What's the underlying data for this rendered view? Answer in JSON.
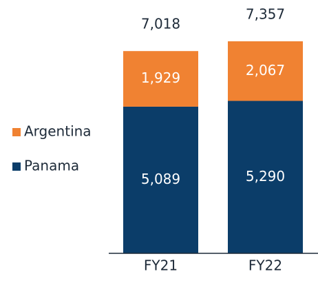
{
  "chart_data": {
    "type": "stacked_bar",
    "categories": [
      "FY21",
      "FY22"
    ],
    "series": [
      {
        "name": "Panama",
        "color": "#0b3d69",
        "values": [
          5089,
          5290
        ],
        "value_labels": [
          "5,089",
          "5,290"
        ]
      },
      {
        "name": "Argentina",
        "color": "#f08232",
        "values": [
          1929,
          2067
        ],
        "value_labels": [
          "1,929",
          "2,067"
        ]
      }
    ],
    "totals": [
      7018,
      7357
    ],
    "total_labels": [
      "7,018",
      "7,357"
    ]
  }
}
